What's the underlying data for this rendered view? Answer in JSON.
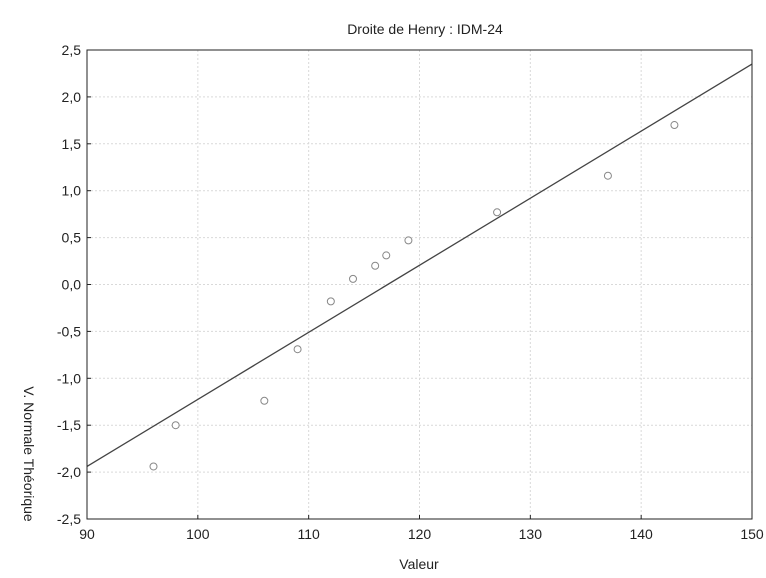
{
  "chart_data": {
    "type": "scatter",
    "title": "Droite de Henry : IDM-24",
    "xlabel": "Valeur",
    "ylabel": "V. Normale Théorique",
    "xlim": [
      90,
      150
    ],
    "ylim": [
      -2.5,
      2.5
    ],
    "x_ticks": [
      90,
      100,
      110,
      120,
      130,
      140,
      150
    ],
    "x_tick_labels": [
      "90",
      "100",
      "110",
      "120",
      "130",
      "140",
      "150"
    ],
    "y_ticks": [
      -2.5,
      -2.0,
      -1.5,
      -1.0,
      -0.5,
      0.0,
      0.5,
      1.0,
      1.5,
      2.0,
      2.5
    ],
    "y_tick_labels": [
      "-2,5",
      "-2,0",
      "-1,5",
      "-1,0",
      "-0,5",
      "0,0",
      "0,5",
      "1,0",
      "1,5",
      "2,0",
      "2,5"
    ],
    "grid": true,
    "points": [
      {
        "x": 96,
        "y": -1.94
      },
      {
        "x": 98,
        "y": -1.5
      },
      {
        "x": 106,
        "y": -1.24
      },
      {
        "x": 109,
        "y": -0.69
      },
      {
        "x": 112,
        "y": -0.18
      },
      {
        "x": 114,
        "y": 0.06
      },
      {
        "x": 116,
        "y": 0.2
      },
      {
        "x": 117,
        "y": 0.31
      },
      {
        "x": 119,
        "y": 0.47
      },
      {
        "x": 127,
        "y": 0.77
      },
      {
        "x": 137,
        "y": 1.16
      },
      {
        "x": 143,
        "y": 1.7
      }
    ],
    "fit_line": {
      "x1": 90,
      "y1": -1.94,
      "x2": 150,
      "y2": 2.35
    },
    "colors": {
      "points": "#888888",
      "line": "#444444",
      "grid": "#d9d9d9",
      "frame": "#222222"
    }
  }
}
